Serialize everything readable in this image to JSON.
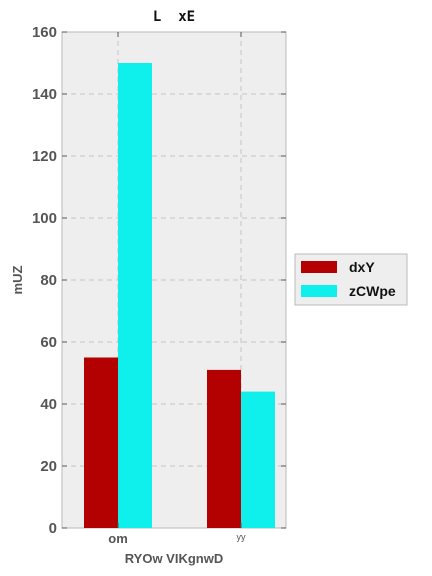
{
  "chart_data": {
    "type": "bar",
    "title": "L  xE",
    "xlabel": "RYOw VIKgnwD",
    "ylabel": "mUZ",
    "categories": [
      "om",
      "yy"
    ],
    "series": [
      {
        "name": "dxY",
        "values": [
          55,
          51
        ],
        "color": "#b30000"
      },
      {
        "name": "zCWpe",
        "values": [
          150,
          44
        ],
        "color": "#0ff0ec"
      }
    ],
    "ylim": [
      0,
      160
    ],
    "yticks": [
      0,
      20,
      40,
      60,
      80,
      100,
      120,
      140,
      160
    ],
    "grid": true,
    "legend_position": "right"
  }
}
